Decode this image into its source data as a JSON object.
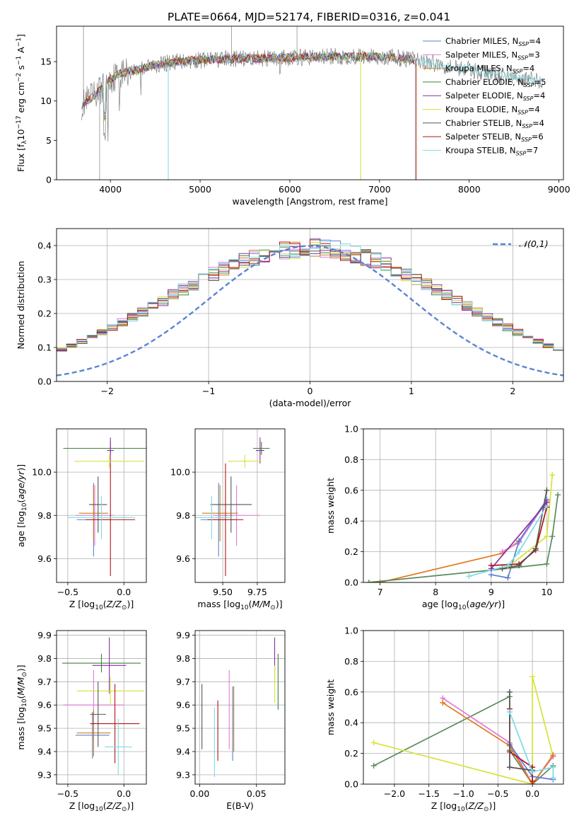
{
  "title": "PLATE=0664, MJD=52174, FIBERID=0316, z=0.041",
  "colors": {
    "Chabrier MILES": "#5b7fd1",
    "Salpeter MILES": "#e07ad6",
    "Kroupa MILES": "#c6801b",
    "Chabrier ELODIE": "#3f7f3f",
    "Salpeter ELODIE": "#8a2fa0",
    "Kroupa ELODIE": "#d6e23a",
    "Chabrier STELIB": "#555555",
    "Salpeter STELIB": "#b31414",
    "Kroupa STELIB": "#7ddbe6",
    "normal": "#5b84d6",
    "orange": "#e07a1f",
    "green": "#5c8a5c"
  },
  "chart_data": [
    {
      "type": "line",
      "panel": "spectrum",
      "xlabel": "wavelength [Angstrom, rest frame]",
      "ylabel": "Flux [f_λ10^-17 erg cm^-2 s^-1 A^-1]",
      "xlim": [
        3400,
        9050
      ],
      "ylim": [
        0,
        19.5
      ],
      "xticks": [
        4000,
        5000,
        6000,
        7000,
        8000,
        9000
      ],
      "yticks": [
        0,
        5,
        10,
        15
      ],
      "grid": false,
      "legend_position": "top-right",
      "legend": [
        {
          "model": "Chabrier MILES",
          "nssp": "4"
        },
        {
          "model": "Salpeter MILES",
          "nssp": "3"
        },
        {
          "model": "Kroupa MILES",
          "nssp": "4"
        },
        {
          "model": "Chabrier ELODIE",
          "nssp": "5"
        },
        {
          "model": "Salpeter ELODIE",
          "nssp": "4"
        },
        {
          "model": "Kroupa ELODIE",
          "nssp": "4"
        },
        {
          "model": "Chabrier STELIB",
          "nssp": "4"
        },
        {
          "model": "Salpeter STELIB",
          "nssp": "6"
        },
        {
          "model": "Kroupa STELIB",
          "nssp": "7"
        }
      ],
      "continuum": [
        [
          3680,
          9.5
        ],
        [
          3800,
          10.5
        ],
        [
          3900,
          11.5
        ],
        [
          4000,
          12.8
        ],
        [
          4100,
          13.5
        ],
        [
          4300,
          14.0
        ],
        [
          4500,
          14.6
        ],
        [
          4800,
          15.1
        ],
        [
          5200,
          15.3
        ],
        [
          5600,
          15.4
        ],
        [
          6000,
          15.5
        ],
        [
          6400,
          15.6
        ],
        [
          6800,
          15.7
        ],
        [
          7200,
          15.5
        ],
        [
          7600,
          14.8
        ],
        [
          8000,
          14.0
        ],
        [
          8400,
          13.1
        ],
        [
          8820,
          12.5
        ]
      ],
      "notes": {
        "observed_range": [
          3680,
          8820
        ],
        "model_range": [
          3680,
          7400
        ]
      }
    },
    {
      "type": "histogram",
      "panel": "residuals",
      "xlabel": "(data-model)/error",
      "ylabel": "Normed distribution",
      "xlim": [
        -2.5,
        2.5
      ],
      "ylim": [
        0,
        0.45
      ],
      "xticks": [
        -2,
        -1,
        0,
        1,
        2
      ],
      "yticks": [
        0.0,
        0.1,
        0.2,
        0.3,
        0.4
      ],
      "grid": true,
      "legend_label": "𝒩(0,1)",
      "legend_position": "top-right",
      "bin_width": 0.1
    },
    {
      "type": "scatter",
      "panel": "age-vs-Z",
      "xlabel": "Z [log10(Z/Z⊙)]",
      "ylabel": "age [log10(age/yr)]",
      "xlim": [
        -0.6,
        0.2
      ],
      "ylim": [
        9.49,
        10.2
      ],
      "xticks": [
        -0.5,
        0.0
      ],
      "yticks": [
        9.6,
        9.8,
        10.0
      ],
      "grid": true,
      "points": [
        {
          "model": "Chabrier MILES",
          "x": -0.27,
          "y": 9.78,
          "xerr": 0.15,
          "yerr": 0.17
        },
        {
          "model": "Salpeter MILES",
          "x": -0.26,
          "y": 9.8,
          "xerr": 0.17,
          "yerr": 0.14
        },
        {
          "model": "Kroupa MILES",
          "x": -0.27,
          "y": 9.81,
          "xerr": 0.13,
          "yerr": 0.13
        },
        {
          "model": "Chabrier ELODIE",
          "x": -0.12,
          "y": 10.11,
          "xerr": 0.42,
          "yerr": 0.03
        },
        {
          "model": "Salpeter ELODIE",
          "x": -0.12,
          "y": 10.1,
          "xerr": 0.03,
          "yerr": 0.06
        },
        {
          "model": "Kroupa ELODIE",
          "x": -0.13,
          "y": 10.05,
          "xerr": 0.31,
          "yerr": 0.03
        },
        {
          "model": "Chabrier STELIB",
          "x": -0.23,
          "y": 9.85,
          "xerr": 0.08,
          "yerr": 0.13
        },
        {
          "model": "Salpeter STELIB",
          "x": -0.12,
          "y": 9.78,
          "xerr": 0.22,
          "yerr": 0.26
        },
        {
          "model": "Kroupa STELIB",
          "x": -0.2,
          "y": 9.79,
          "xerr": 0.3,
          "yerr": 0.1
        }
      ]
    },
    {
      "type": "scatter",
      "panel": "age-vs-mass",
      "xlabel": "mass [log10(M/M⊙)]",
      "ylabel": "",
      "xlim": [
        9.3,
        9.95
      ],
      "ylim": [
        9.49,
        10.2
      ],
      "xticks": [
        9.5,
        9.75
      ],
      "xtick_labels": [
        "9.50",
        "9.75"
      ],
      "yticks": [
        9.6,
        9.8,
        10.0
      ],
      "grid": true,
      "points": [
        {
          "model": "Chabrier MILES",
          "x": 9.47,
          "y": 9.78,
          "xerr": 0.13,
          "yerr": 0.17
        },
        {
          "model": "Salpeter MILES",
          "x": 9.6,
          "y": 9.8,
          "xerr": 0.17,
          "yerr": 0.14
        },
        {
          "model": "Kroupa MILES",
          "x": 9.48,
          "y": 9.81,
          "xerr": 0.13,
          "yerr": 0.13
        },
        {
          "model": "Chabrier ELODIE",
          "x": 9.78,
          "y": 10.11,
          "xerr": 0.06,
          "yerr": 0.03
        },
        {
          "model": "Salpeter ELODIE",
          "x": 9.77,
          "y": 10.1,
          "xerr": 0.03,
          "yerr": 0.06
        },
        {
          "model": "Kroupa ELODIE",
          "x": 9.66,
          "y": 10.05,
          "xerr": 0.12,
          "yerr": 0.03
        },
        {
          "model": "Chabrier STELIB",
          "x": 9.56,
          "y": 9.85,
          "xerr": 0.15,
          "yerr": 0.13
        },
        {
          "model": "Salpeter STELIB",
          "x": 9.52,
          "y": 9.78,
          "xerr": 0.13,
          "yerr": 0.26
        },
        {
          "model": "Kroupa STELIB",
          "x": 9.42,
          "y": 9.79,
          "xerr": 0.13,
          "yerr": 0.1
        }
      ]
    },
    {
      "type": "line",
      "panel": "mass-weight-vs-age",
      "xlabel": "age [log10(age/yr)]",
      "ylabel": "mass weight",
      "xlim": [
        6.7,
        10.3
      ],
      "ylim": [
        0,
        1.0
      ],
      "xticks": [
        7,
        8,
        9,
        10
      ],
      "yticks": [
        0.0,
        0.2,
        0.4,
        0.6,
        0.8,
        1.0
      ],
      "grid": true,
      "series": [
        {
          "model": "Kroupa MILES",
          "color_key": "orange",
          "points": [
            [
              7.0,
              0.0
            ],
            [
              9.2,
              0.19
            ],
            [
              9.5,
              0.27
            ],
            [
              10.0,
              0.53
            ]
          ]
        },
        {
          "model": "Salpeter MILES",
          "color_key": "Salpeter MILES",
          "points": [
            [
              9.2,
              0.2
            ],
            [
              9.5,
              0.26
            ],
            [
              10.0,
              0.53
            ]
          ]
        },
        {
          "model": "Chabrier MILES",
          "color_key": "Chabrier MILES",
          "points": [
            [
              9.0,
              0.05
            ],
            [
              9.3,
              0.03
            ],
            [
              9.5,
              0.27
            ],
            [
              10.0,
              0.54
            ]
          ]
        },
        {
          "model": "Chabrier ELODIE",
          "color_key": "green",
          "points": [
            [
              6.8,
              0.0
            ],
            [
              9.0,
              0.08
            ],
            [
              10.0,
              0.12
            ],
            [
              10.1,
              0.3
            ],
            [
              10.2,
              0.57
            ]
          ]
        },
        {
          "model": "Kroupa ELODIE",
          "color_key": "Kroupa ELODIE",
          "points": [
            [
              9.3,
              0.1
            ],
            [
              10.0,
              0.3
            ],
            [
              10.1,
              0.7
            ]
          ]
        },
        {
          "model": "Salpeter STELIB",
          "color_key": "Salpeter STELIB",
          "points": [
            [
              9.0,
              0.11
            ],
            [
              9.5,
              0.12
            ],
            [
              9.8,
              0.21
            ],
            [
              10.0,
              0.49
            ]
          ]
        },
        {
          "model": "Chabrier STELIB",
          "color_key": "Chabrier STELIB",
          "points": [
            [
              9.2,
              0.09
            ],
            [
              9.5,
              0.11
            ],
            [
              9.8,
              0.22
            ],
            [
              10.0,
              0.6
            ]
          ]
        },
        {
          "model": "Kroupa STELIB",
          "color_key": "Kroupa STELIB",
          "points": [
            [
              8.6,
              0.04
            ],
            [
              9.0,
              0.08
            ],
            [
              9.3,
              0.11
            ],
            [
              9.5,
              0.2
            ],
            [
              10.0,
              0.5
            ]
          ]
        },
        {
          "model": "Salpeter ELODIE",
          "color_key": "Salpeter ELODIE",
          "points": [
            [
              9.0,
              0.09
            ],
            [
              10.0,
              0.52
            ]
          ]
        }
      ]
    },
    {
      "type": "scatter",
      "panel": "mass-vs-Z",
      "xlabel": "Z [log10(Z/Z⊙)]",
      "ylabel": "mass [log10(M/M⊙)]",
      "xlim": [
        -0.6,
        0.2
      ],
      "ylim": [
        9.26,
        9.92
      ],
      "xticks": [
        -0.5,
        0.0
      ],
      "yticks": [
        9.3,
        9.4,
        9.5,
        9.6,
        9.7,
        9.8,
        9.9
      ],
      "grid": true,
      "points": [
        {
          "model": "Chabrier MILES",
          "x": -0.28,
          "y": 9.47,
          "xerr": 0.15,
          "yerr": 0.1
        },
        {
          "model": "Salpeter MILES",
          "x": -0.27,
          "y": 9.6,
          "xerr": 0.27,
          "yerr": 0.15
        },
        {
          "model": "Kroupa MILES",
          "x": -0.27,
          "y": 9.48,
          "xerr": 0.15,
          "yerr": 0.1
        },
        {
          "model": "Chabrier ELODIE",
          "x": -0.2,
          "y": 9.78,
          "xerr": 0.35,
          "yerr": 0.04
        },
        {
          "model": "Salpeter ELODIE",
          "x": -0.13,
          "y": 9.77,
          "xerr": 0.15,
          "yerr": 0.12
        },
        {
          "model": "Kroupa ELODIE",
          "x": -0.12,
          "y": 9.66,
          "xerr": 0.3,
          "yerr": 0.06
        },
        {
          "model": "Chabrier STELIB",
          "x": -0.23,
          "y": 9.56,
          "xerr": 0.07,
          "yerr": 0.14
        },
        {
          "model": "Salpeter STELIB",
          "x": -0.08,
          "y": 9.52,
          "xerr": 0.22,
          "yerr": 0.17
        },
        {
          "model": "Kroupa STELIB",
          "x": -0.05,
          "y": 9.42,
          "xerr": 0.12,
          "yerr": 0.12
        }
      ]
    },
    {
      "type": "scatter",
      "panel": "mass-vs-EBV",
      "xlabel": "E(B-V)",
      "ylabel": "",
      "xlim": [
        -0.004,
        0.075
      ],
      "ylim": [
        9.26,
        9.92
      ],
      "xticks": [
        0.0,
        0.05
      ],
      "xtick_labels": [
        "0.00",
        "0.05"
      ],
      "yticks": [
        9.3,
        9.4,
        9.5,
        9.6,
        9.7,
        9.8,
        9.9
      ],
      "grid": true,
      "points": [
        {
          "model": "Chabrier MILES",
          "x": 0.029,
          "y": 9.52,
          "yerr": 0.16
        },
        {
          "model": "Salpeter MILES",
          "x": 0.026,
          "y": 9.58,
          "yerr": 0.17
        },
        {
          "model": "Kroupa MILES",
          "x": 0.03,
          "y": 9.54,
          "yerr": 0.14
        },
        {
          "model": "Chabrier ELODIE",
          "x": 0.069,
          "y": 9.7,
          "yerr": 0.12
        },
        {
          "model": "Salpeter ELODIE",
          "x": 0.066,
          "y": 9.8,
          "yerr": 0.09
        },
        {
          "model": "Kroupa ELODIE",
          "x": 0.066,
          "y": 9.69,
          "yerr": 0.08
        },
        {
          "model": "Chabrier STELIB",
          "x": 0.002,
          "y": 9.55,
          "yerr": 0.14
        },
        {
          "model": "Salpeter STELIB",
          "x": 0.016,
          "y": 9.49,
          "yerr": 0.13
        },
        {
          "model": "Kroupa STELIB",
          "x": 0.013,
          "y": 9.44,
          "yerr": 0.15
        }
      ]
    },
    {
      "type": "line",
      "panel": "mass-weight-vs-Z",
      "xlabel": "Z [log10(Z/Z⊙)]",
      "ylabel": "mass weight",
      "xlim": [
        -2.45,
        0.45
      ],
      "ylim": [
        0,
        1.0
      ],
      "xticks": [
        -2.0,
        -1.5,
        -1.0,
        -0.5,
        0.0
      ],
      "yticks": [
        0.0,
        0.2,
        0.4,
        0.6,
        0.8,
        1.0
      ],
      "grid": true,
      "series": [
        {
          "model": "Chabrier ELODIE",
          "color_key": "green",
          "points": [
            [
              -2.3,
              0.12
            ],
            [
              -0.33,
              0.57
            ],
            [
              -0.33,
              0.22
            ],
            [
              0.0,
              0.0
            ],
            [
              0.3,
              0.12
            ]
          ]
        },
        {
          "model": "Kroupa ELODIE",
          "color_key": "Kroupa ELODIE",
          "points": [
            [
              -2.3,
              0.27
            ],
            [
              0.0,
              0.0
            ],
            [
              0.0,
              0.7
            ],
            [
              0.3,
              0.18
            ]
          ]
        },
        {
          "model": "Salpeter MILES",
          "color_key": "Salpeter MILES",
          "points": [
            [
              -1.3,
              0.56
            ],
            [
              -0.33,
              0.27
            ],
            [
              0.0,
              0.0
            ],
            [
              0.3,
              0.18
            ]
          ]
        },
        {
          "model": "Kroupa MILES",
          "color_key": "orange",
          "points": [
            [
              -1.3,
              0.53
            ],
            [
              -0.33,
              0.25
            ],
            [
              0.0,
              0.0
            ],
            [
              0.3,
              0.19
            ]
          ]
        },
        {
          "model": "Chabrier MILES",
          "color_key": "Chabrier MILES",
          "points": [
            [
              -0.33,
              0.26
            ],
            [
              0.0,
              0.05
            ],
            [
              0.3,
              0.03
            ]
          ]
        },
        {
          "model": "Salpeter STELIB",
          "color_key": "Salpeter STELIB",
          "points": [
            [
              -0.33,
              0.49
            ],
            [
              -0.33,
              0.21
            ],
            [
              0.0,
              0.11
            ],
            [
              0.0,
              0.02
            ]
          ]
        },
        {
          "model": "Chabrier STELIB",
          "color_key": "Chabrier STELIB",
          "points": [
            [
              -0.33,
              0.6
            ],
            [
              -0.33,
              0.11
            ],
            [
              0.0,
              0.09
            ]
          ]
        },
        {
          "model": "Kroupa STELIB",
          "color_key": "Kroupa STELIB",
          "points": [
            [
              -0.33,
              0.47
            ],
            [
              0.0,
              0.08
            ],
            [
              0.3,
              0.11
            ],
            [
              0.3,
              0.04
            ]
          ]
        }
      ]
    }
  ]
}
